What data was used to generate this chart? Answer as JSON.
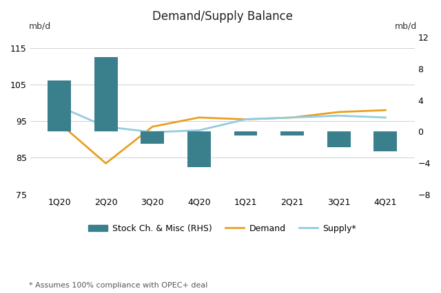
{
  "title": "Demand/Supply Balance",
  "categories": [
    "1Q20",
    "2Q20",
    "3Q20",
    "4Q20",
    "1Q21",
    "2Q21",
    "3Q21",
    "4Q21"
  ],
  "demand": [
    94.5,
    83.5,
    93.5,
    96.0,
    95.5,
    96.0,
    97.5,
    98.0
  ],
  "supply": [
    99.0,
    93.5,
    92.0,
    92.5,
    95.5,
    96.0,
    96.5,
    96.0
  ],
  "stock_change": [
    6.5,
    9.5,
    -1.5,
    -4.5,
    -0.5,
    -0.5,
    -2.0,
    -2.5
  ],
  "bar_color": "#3a7f8c",
  "demand_color": "#e8a020",
  "supply_color": "#92cce0",
  "left_ylim": [
    75,
    120
  ],
  "left_yticks": [
    75,
    85,
    95,
    105,
    115
  ],
  "right_ylim": [
    -8.0,
    13.0
  ],
  "right_yticks": [
    -8.0,
    -4.0,
    0.0,
    4.0,
    8.0,
    12.0
  ],
  "ylabel_left": "mb/d",
  "ylabel_right": "mb/d",
  "footnote": "* Assumes 100% compliance with OPEC+ deal",
  "legend_stock": "Stock Ch. & Misc (RHS)",
  "legend_demand": "Demand",
  "legend_supply": "Supply*",
  "background_color": "#ffffff",
  "grid_color": "#d0d0d0"
}
